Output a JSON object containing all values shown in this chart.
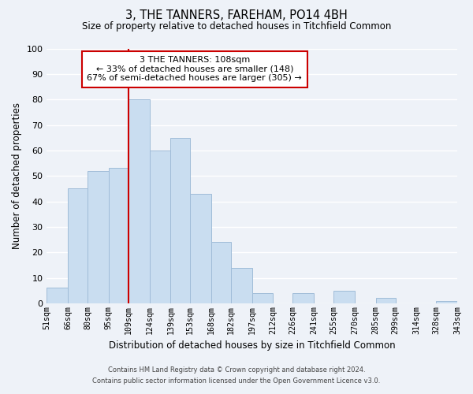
{
  "title": "3, THE TANNERS, FAREHAM, PO14 4BH",
  "subtitle": "Size of property relative to detached houses in Titchfield Common",
  "xlabel": "Distribution of detached houses by size in Titchfield Common",
  "ylabel": "Number of detached properties",
  "bar_edges": [
    51,
    66,
    80,
    95,
    109,
    124,
    139,
    153,
    168,
    182,
    197,
    212,
    226,
    241,
    255,
    270,
    285,
    299,
    314,
    328,
    343
  ],
  "bar_heights": [
    6,
    45,
    52,
    53,
    80,
    60,
    65,
    43,
    24,
    14,
    4,
    0,
    4,
    0,
    5,
    0,
    2,
    0,
    0,
    1
  ],
  "bar_color": "#c9ddf0",
  "bar_edge_color": "#a0bcd8",
  "vline_x": 109,
  "vline_color": "#cc0000",
  "ylim": [
    0,
    100
  ],
  "annotation_text": "3 THE TANNERS: 108sqm\n← 33% of detached houses are smaller (148)\n67% of semi-detached houses are larger (305) →",
  "annotation_box_color": "white",
  "annotation_box_edge": "#cc0000",
  "tick_labels": [
    "51sqm",
    "66sqm",
    "80sqm",
    "95sqm",
    "109sqm",
    "124sqm",
    "139sqm",
    "153sqm",
    "168sqm",
    "182sqm",
    "197sqm",
    "212sqm",
    "226sqm",
    "241sqm",
    "255sqm",
    "270sqm",
    "285sqm",
    "299sqm",
    "314sqm",
    "328sqm",
    "343sqm"
  ],
  "footer_line1": "Contains HM Land Registry data © Crown copyright and database right 2024.",
  "footer_line2": "Contains public sector information licensed under the Open Government Licence v3.0.",
  "background_color": "#eef2f8",
  "grid_color": "#ffffff",
  "yticks": [
    0,
    10,
    20,
    30,
    40,
    50,
    60,
    70,
    80,
    90,
    100
  ]
}
